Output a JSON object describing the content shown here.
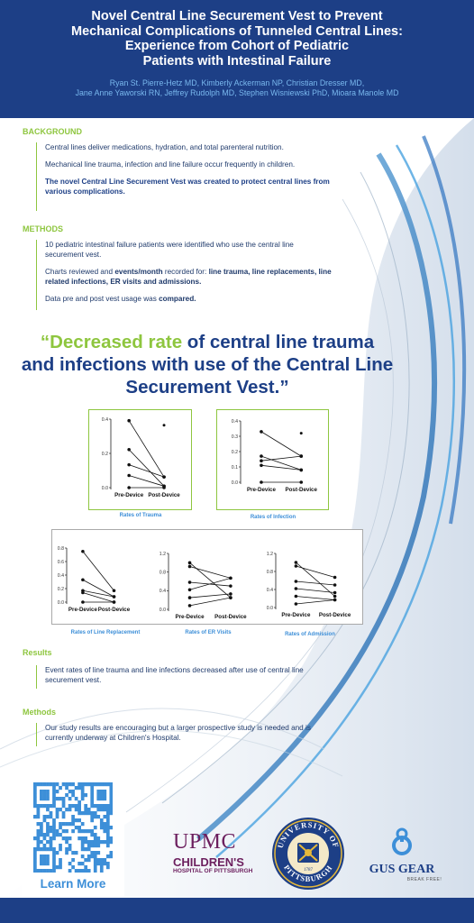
{
  "header": {
    "title_lines": [
      "Novel Central Line Securement Vest to Prevent",
      "Mechanical Complications of Tunneled Central Lines:",
      "Experience from Cohort of Pediatric",
      "Patients with Intestinal Failure"
    ],
    "author_lines": [
      "Ryan St. Pierre-Hetz MD, Kimberly Ackerman NP, Christian Dresser MD,",
      "Jane Anne Yaworski RN, Jeffrey Rudolph MD, Stephen Wisniewski PhD, Mioara Manole MD"
    ]
  },
  "background": {
    "heading": "BACKGROUND",
    "p1": "Central lines deliver medications, hydration, and total parenteral nutrition.",
    "p2": "Mechanical line trauma, infection and line failure occur frequently in children.",
    "p3": "The novel Central Line Securement Vest was created to protect central lines from various complications."
  },
  "methods": {
    "heading": "METHODS",
    "p1": "10 pediatric intestinal failure patients were identified who use the central line securement vest.",
    "p2_a": "Charts reviewed and ",
    "p2_b": "events/month",
    "p2_c": " recorded for: ",
    "p2_d": "line trauma, line replacements, line related infections, ER visits and admissions.",
    "p3_a": "Data pre and post vest usage was ",
    "p3_b": "compared."
  },
  "quote": {
    "open_mark": "“",
    "highlight": "Decreased rate",
    "line1_rest": " of central line trauma",
    "line2": "and infections with use of the Central Line",
    "line3": "Securement Vest.”"
  },
  "chart_data": [
    {
      "type": "scatter",
      "title": "Rates of Trauma",
      "categories": [
        "Pre-Device",
        "Post-Device"
      ],
      "ylim": [
        0,
        0.45
      ],
      "yticks": [
        "0.0",
        "0.2",
        "0.4"
      ],
      "pairs": [
        [
          0.44,
          0.07
        ],
        [
          0.25,
          0.01
        ],
        [
          0.15,
          0.07
        ],
        [
          0.08,
          0.01
        ],
        [
          0.0,
          0.0
        ]
      ],
      "extra_points": [
        {
          "category": "Post-Device",
          "value": 0.41
        }
      ]
    },
    {
      "type": "scatter",
      "title": "Rates of Infection",
      "categories": [
        "Pre-Device",
        "Post-Device"
      ],
      "ylim": [
        0,
        0.4
      ],
      "yticks": [
        "0.0",
        "0.1",
        "0.2",
        "0.3",
        "0.4"
      ],
      "pairs": [
        [
          0.33,
          0.17
        ],
        [
          0.17,
          0.08
        ],
        [
          0.14,
          0.17
        ],
        [
          0.11,
          0.08
        ],
        [
          0.0,
          0.0
        ]
      ],
      "extra_points": [
        {
          "category": "Post-Device",
          "value": 0.32
        }
      ]
    },
    {
      "type": "scatter",
      "title": "Rates of Line Replacement",
      "categories": [
        "Pre-Device",
        "Post-Device"
      ],
      "ylim": [
        0,
        0.8
      ],
      "yticks": [
        "0.0",
        "0.2",
        "0.4",
        "0.6",
        "0.8"
      ],
      "pairs": [
        [
          0.75,
          0.17
        ],
        [
          0.33,
          0.08
        ],
        [
          0.17,
          0.08
        ],
        [
          0.14,
          0.0
        ],
        [
          0.0,
          0.0
        ]
      ],
      "extra_points": []
    },
    {
      "type": "scatter",
      "title": "Rates of ER Visits",
      "categories": [
        "Pre-Device",
        "Post-Device"
      ],
      "ylim": [
        0,
        1.2
      ],
      "yticks": [
        "0.0",
        "0.4",
        "0.8",
        "1.2"
      ],
      "pairs": [
        [
          1.0,
          0.25
        ],
        [
          0.92,
          0.67
        ],
        [
          0.58,
          0.5
        ],
        [
          0.42,
          0.67
        ],
        [
          0.25,
          0.33
        ],
        [
          0.08,
          0.25
        ]
      ],
      "extra_points": []
    },
    {
      "type": "scatter",
      "title": "Rates of Admission",
      "categories": [
        "Pre-Device",
        "Post-Device"
      ],
      "ylim": [
        0,
        1.2
      ],
      "yticks": [
        "0.0",
        "0.4",
        "0.8",
        "1.2"
      ],
      "pairs": [
        [
          1.0,
          0.25
        ],
        [
          0.92,
          0.67
        ],
        [
          0.58,
          0.5
        ],
        [
          0.42,
          0.33
        ],
        [
          0.25,
          0.17
        ],
        [
          0.08,
          0.17
        ]
      ],
      "extra_points": []
    }
  ],
  "results": {
    "heading": "Results",
    "p1": "Event rates of line trauma and line infections decreased after use of central line securement vest."
  },
  "methods2": {
    "heading": "Methods",
    "p1": "Our study results are encouraging but a larger prospective study is needed and is currently underway at Children's Hospital."
  },
  "footer_logos": {
    "learn_more": "Learn More",
    "upmc": "UPMC",
    "childrens": "CHILDREN'S",
    "hospital": "HOSPITAL OF PITTSBURGH",
    "pitt_top": "UNIVERSITY OF",
    "pitt_bottom": "PITTSBURGH",
    "pitt_year": "1787",
    "gus": "GUS GEAR",
    "gus_tag": "BREAK FREE!",
    "accent_green": "#8ec63f",
    "brand_blue": "#1d3f86",
    "upmc_purple": "#6c1f5e"
  }
}
